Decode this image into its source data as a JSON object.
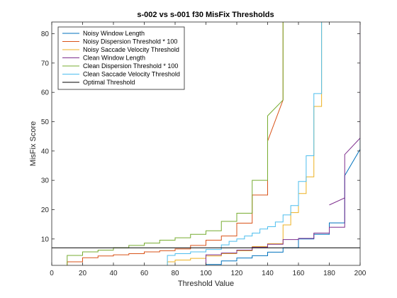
{
  "chart_data": {
    "type": "line",
    "title": "s-002 vs s-001 f30 MisFix Thresholds",
    "xlabel": "Threshold Value",
    "ylabel": "MisFix Score",
    "xlim": [
      0,
      200
    ],
    "ylim": [
      1,
      84
    ],
    "xticks": [
      0,
      20,
      40,
      60,
      80,
      100,
      120,
      140,
      160,
      180,
      200
    ],
    "yticks": [
      10,
      20,
      30,
      40,
      50,
      60,
      70,
      80
    ],
    "grid": false,
    "legend_position": "top-left",
    "series": [
      {
        "name": "Noisy Window Length",
        "color": "#0072BD",
        "points": [
          [
            100,
            1
          ],
          [
            100,
            1.3
          ],
          [
            110,
            1.3
          ],
          [
            110,
            2.5
          ],
          [
            120,
            2.5
          ],
          [
            120,
            3.5
          ],
          [
            130,
            3.5
          ],
          [
            130,
            4.3
          ],
          [
            140,
            4.3
          ],
          [
            140,
            5.5
          ],
          [
            150,
            5.5
          ],
          [
            150,
            7
          ],
          [
            160,
            7
          ],
          [
            160,
            10
          ],
          [
            170,
            10
          ],
          [
            170,
            11.6
          ],
          [
            180,
            11.6
          ],
          [
            180,
            15.5
          ],
          [
            190,
            15.5
          ],
          [
            190,
            31.6
          ],
          [
            200,
            40.6
          ],
          [
            200,
            84
          ]
        ]
      },
      {
        "name": "Noisy Dispersion Threshold * 100",
        "color": "#D95319",
        "points": [
          [
            10,
            1
          ],
          [
            10,
            2.2
          ],
          [
            20,
            2.2
          ],
          [
            20,
            3.6
          ],
          [
            30,
            3.6
          ],
          [
            30,
            4.2
          ],
          [
            40,
            4.2
          ],
          [
            40,
            4.6
          ],
          [
            50,
            4.6
          ],
          [
            50,
            5
          ],
          [
            60,
            5
          ],
          [
            60,
            5.6
          ],
          [
            70,
            5.6
          ],
          [
            70,
            6
          ],
          [
            80,
            6
          ],
          [
            80,
            6.6
          ],
          [
            90,
            6.6
          ],
          [
            90,
            7.8
          ],
          [
            100,
            7.8
          ],
          [
            100,
            9.6
          ],
          [
            110,
            9.6
          ],
          [
            110,
            11
          ],
          [
            120,
            11
          ],
          [
            120,
            15.4
          ],
          [
            130,
            15.4
          ],
          [
            130,
            25
          ],
          [
            140,
            25
          ],
          [
            140,
            43.4
          ],
          [
            150,
            57.4
          ],
          [
            150,
            84
          ]
        ]
      },
      {
        "name": "Noisy Saccade Velocity Threshold",
        "color": "#EDB120",
        "points": [
          [
            75,
            1
          ],
          [
            75,
            2.2
          ],
          [
            80,
            2.2
          ],
          [
            80,
            2.8
          ],
          [
            90,
            2.8
          ],
          [
            90,
            3.4
          ],
          [
            100,
            3.4
          ],
          [
            100,
            4.2
          ],
          [
            110,
            4.2
          ],
          [
            110,
            5
          ],
          [
            120,
            5
          ],
          [
            120,
            6
          ],
          [
            130,
            6
          ],
          [
            130,
            7.4
          ],
          [
            140,
            7.4
          ],
          [
            140,
            8.4
          ],
          [
            150,
            8.4
          ],
          [
            150,
            14.8
          ],
          [
            155,
            14.8
          ],
          [
            155,
            19
          ],
          [
            160,
            19
          ],
          [
            160,
            25.5
          ],
          [
            165,
            25.5
          ],
          [
            165,
            31.2
          ],
          [
            170,
            31.2
          ],
          [
            170,
            55.2
          ],
          [
            175,
            55.2
          ],
          [
            175,
            84
          ]
        ]
      },
      {
        "name": "Clean Window Length",
        "color": "#7E2F8E",
        "points": [
          [
            100,
            1
          ],
          [
            100,
            4.6
          ],
          [
            110,
            4.6
          ],
          [
            110,
            5.2
          ],
          [
            120,
            5.2
          ],
          [
            120,
            6.2
          ],
          [
            130,
            6.2
          ],
          [
            130,
            7.2
          ],
          [
            140,
            7.2
          ],
          [
            140,
            8.2
          ],
          [
            150,
            8.2
          ],
          [
            150,
            9.8
          ],
          [
            160,
            9.8
          ],
          [
            160,
            10.2
          ],
          [
            170,
            10.2
          ],
          [
            170,
            12
          ],
          [
            180,
            12
          ],
          [
            180,
            14
          ],
          [
            190,
            14
          ],
          [
            190,
            24
          ],
          [
            180,
            21.6
          ],
          [
            190,
            24
          ],
          [
            190,
            38.8
          ],
          [
            200,
            44.4
          ],
          [
            200,
            84
          ]
        ]
      },
      {
        "name": "Clean Dispersion Threshold * 100",
        "color": "#77AC30",
        "points": [
          [
            10,
            1
          ],
          [
            10,
            4.4
          ],
          [
            20,
            4.4
          ],
          [
            20,
            5.6
          ],
          [
            30,
            5.6
          ],
          [
            30,
            6.2
          ],
          [
            40,
            6.2
          ],
          [
            40,
            7
          ],
          [
            50,
            7
          ],
          [
            50,
            7.8
          ],
          [
            60,
            7.8
          ],
          [
            60,
            8.6
          ],
          [
            70,
            8.6
          ],
          [
            70,
            9.6
          ],
          [
            80,
            9.6
          ],
          [
            80,
            10.4
          ],
          [
            90,
            10.4
          ],
          [
            90,
            11.6
          ],
          [
            100,
            11.6
          ],
          [
            100,
            12.8
          ],
          [
            110,
            12.8
          ],
          [
            110,
            16
          ],
          [
            120,
            16
          ],
          [
            120,
            18.8
          ],
          [
            130,
            18.8
          ],
          [
            130,
            20.8
          ],
          [
            130,
            30
          ],
          [
            140,
            30
          ],
          [
            140,
            52
          ],
          [
            150,
            57.4
          ],
          [
            150,
            84
          ]
        ]
      },
      {
        "name": "Clean Saccade Velocity Threshold",
        "color": "#4DBEEE",
        "points": [
          [
            75,
            1
          ],
          [
            75,
            4.4
          ],
          [
            80,
            4.4
          ],
          [
            80,
            5
          ],
          [
            90,
            5
          ],
          [
            90,
            5.6
          ],
          [
            100,
            5.6
          ],
          [
            100,
            6.4
          ],
          [
            110,
            6.4
          ],
          [
            110,
            8
          ],
          [
            115,
            8
          ],
          [
            115,
            9.2
          ],
          [
            120,
            9.2
          ],
          [
            120,
            10
          ],
          [
            125,
            10
          ],
          [
            125,
            11
          ],
          [
            130,
            11
          ],
          [
            130,
            12
          ],
          [
            135,
            12
          ],
          [
            135,
            13.4
          ],
          [
            140,
            13.4
          ],
          [
            140,
            14.2
          ],
          [
            145,
            14.2
          ],
          [
            145,
            15.8
          ],
          [
            150,
            15.8
          ],
          [
            150,
            18.2
          ],
          [
            155,
            18.2
          ],
          [
            155,
            21.4
          ],
          [
            160,
            21.4
          ],
          [
            160,
            29.6
          ],
          [
            165,
            29.6
          ],
          [
            165,
            38.4
          ],
          [
            170,
            38.4
          ],
          [
            170,
            59.6
          ],
          [
            175,
            59.6
          ],
          [
            175,
            84
          ]
        ]
      },
      {
        "name": "Optimal Threshold",
        "color": "#000000",
        "points": [
          [
            0,
            7
          ],
          [
            200,
            7
          ]
        ]
      }
    ]
  }
}
